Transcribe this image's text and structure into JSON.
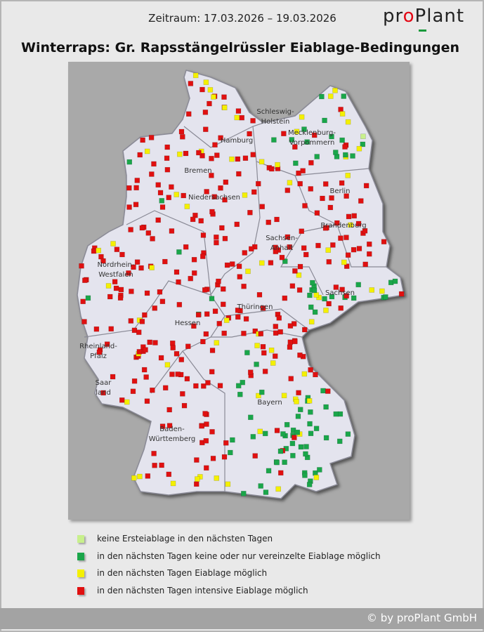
{
  "header": {
    "period": "Zeitraum: 17.03.2026 – 19.03.2026",
    "logo_text": "proPlant",
    "title": "Winterraps: Gr. Rapsstängelrüssler Eiablage-Bedingungen"
  },
  "map": {
    "land_color": "#e4e4ee",
    "border_color": "#8a8a96",
    "background": "#a9a9a9",
    "states": [
      "Schleswig-Holstein",
      "Hamburg",
      "Mecklenburg-Vorpommern",
      "Bremen",
      "Niedersachsen",
      "Berlin",
      "Brandenburg",
      "Sachsen-Anhalt",
      "Nordrhein-Westfalen",
      "Sachsen",
      "Thüringen",
      "Hessen",
      "Rheinland-Pfalz",
      "Saarland",
      "Bayern",
      "Baden-Württemberg"
    ]
  },
  "legend": [
    {
      "label": "keine Ersteiablage in den nächsten Tagen",
      "color": "#c8f08c"
    },
    {
      "label": "in den nächsten Tagen keine oder nur vereinzelte Eiablage möglich",
      "color": "#1aa64a"
    },
    {
      "label": "in den nächsten Tagen Eiablage möglich",
      "color": "#f4f000"
    },
    {
      "label": "in den nächsten Tagen intensive Eiablage möglich",
      "color": "#e01010"
    }
  ],
  "footer": {
    "copyright": "© by proPlant GmbH"
  }
}
